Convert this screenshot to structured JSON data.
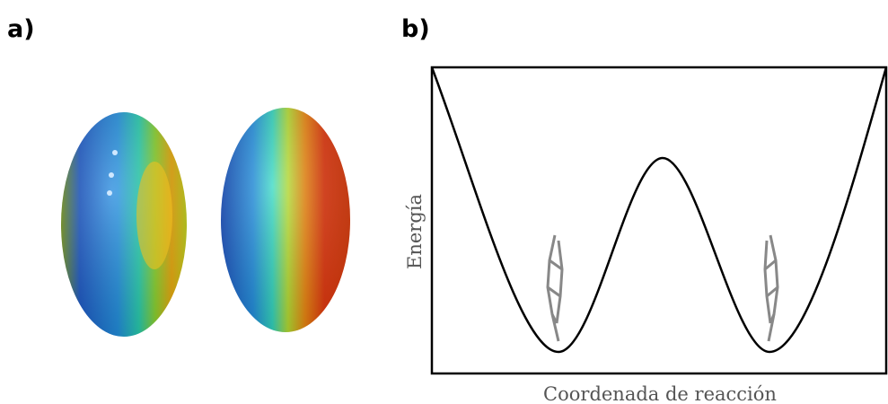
{
  "panel_a": {
    "label": "a)"
  },
  "panel_b": {
    "label": "b)",
    "y_axis_label": "Energía",
    "x_axis_label": "Coordenada de reacción"
  }
}
